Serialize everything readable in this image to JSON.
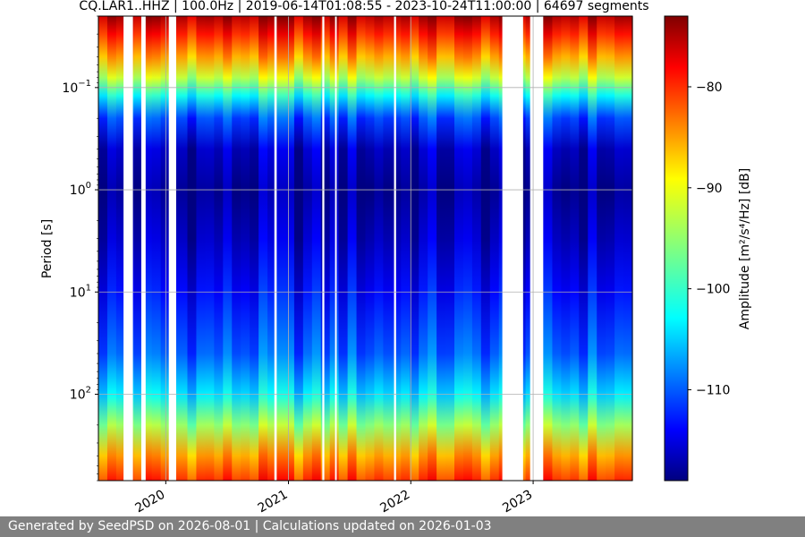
{
  "chart_data": {
    "type": "heatmap",
    "title": "CQ.LAR1..HHZ | 100.0Hz | 2019-06-14T01:08:55 - 2023-10-24T11:00:00 | 64697 segments",
    "xlabel": "",
    "ylabel": "Period [s]",
    "y_scale": "log",
    "y_inverted": true,
    "x_range": [
      "2019-06-14",
      "2023-10-24"
    ],
    "y_range": [
      0.02,
      700
    ],
    "x_ticks": [
      {
        "date": "2020-01-01",
        "label": "2020"
      },
      {
        "date": "2021-01-01",
        "label": "2021"
      },
      {
        "date": "2022-01-01",
        "label": "2022"
      },
      {
        "date": "2023-01-01",
        "label": "2023"
      }
    ],
    "y_ticks": [
      {
        "value": 0.1,
        "base": "10",
        "exp": "−1"
      },
      {
        "value": 1,
        "base": "10",
        "exp": "0"
      },
      {
        "value": 10,
        "base": "10",
        "exp": "1"
      },
      {
        "value": 100,
        "base": "10",
        "exp": "2"
      }
    ],
    "grid": true,
    "colorbar": {
      "colormap": "jet",
      "label": "Amplitude [m²/s⁴/Hz] [dB]",
      "range_db": [
        -119,
        -73
      ],
      "ticks": [
        {
          "value": -80,
          "label": "−80"
        },
        {
          "value": -90,
          "label": "−90"
        },
        {
          "value": -100,
          "label": "−100"
        },
        {
          "value": -110,
          "label": "−110"
        }
      ]
    },
    "amplitude_profile_db": [
      {
        "period_s": 0.02,
        "db": -75
      },
      {
        "period_s": 0.03,
        "db": -80
      },
      {
        "period_s": 0.05,
        "db": -86
      },
      {
        "period_s": 0.08,
        "db": -93
      },
      {
        "period_s": 0.12,
        "db": -101
      },
      {
        "period_s": 0.2,
        "db": -110
      },
      {
        "period_s": 0.4,
        "db": -116
      },
      {
        "period_s": 1,
        "db": -118
      },
      {
        "period_s": 3,
        "db": -116
      },
      {
        "period_s": 10,
        "db": -113
      },
      {
        "period_s": 40,
        "db": -109
      },
      {
        "period_s": 100,
        "db": -103
      },
      {
        "period_s": 200,
        "db": -95
      },
      {
        "period_s": 400,
        "db": -86
      },
      {
        "period_s": 700,
        "db": -81
      }
    ],
    "data_gaps": [
      {
        "start": "2019-08-28",
        "end": "2019-09-25"
      },
      {
        "start": "2019-10-20",
        "end": "2019-11-02"
      },
      {
        "start": "2020-01-10",
        "end": "2020-02-01"
      },
      {
        "start": "2020-11-20",
        "end": "2020-11-27"
      },
      {
        "start": "2021-04-12",
        "end": "2021-04-18"
      },
      {
        "start": "2021-05-20",
        "end": "2021-05-25"
      },
      {
        "start": "2021-11-12",
        "end": "2021-11-18"
      },
      {
        "start": "2022-10-01",
        "end": "2022-12-02"
      },
      {
        "start": "2022-12-23",
        "end": "2023-01-31"
      }
    ]
  },
  "footer": {
    "text": "Generated by SeedPSD on 2026-08-01 | Calculations updated on 2026-01-03"
  }
}
